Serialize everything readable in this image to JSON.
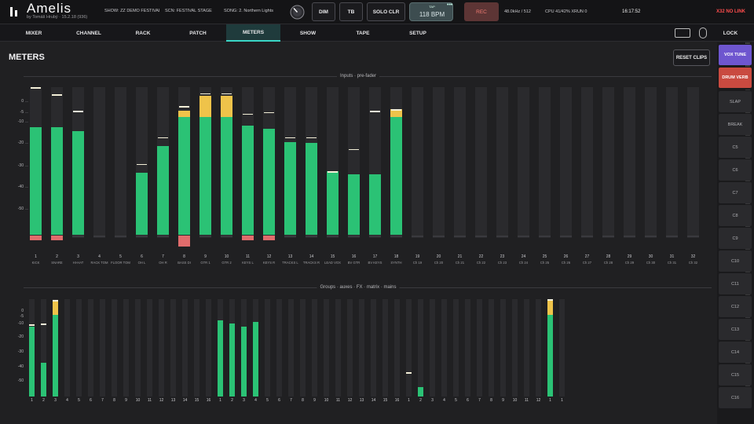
{
  "app": {
    "name": "Amelis",
    "subtitle": "by Tomáš Hrubý · 15.2.18 (936)"
  },
  "status": {
    "show": "SHOW: ZZ DEMO FESTIVAL STA...",
    "scene": "SCN: FESTIVAL STAGE",
    "song": "SONG: 2. Northern Lights",
    "samplerate": "48.0kHz / 512",
    "cpu": "CPU 41/42%  XRUN 0",
    "clock": "16:17:52",
    "console": "X32 NO LINK"
  },
  "top_buttons": {
    "dim": "DIM",
    "tb": "TB",
    "solo_clr": "SOLO CLR",
    "tap_label": "TAP",
    "tap_bpm": "118 BPM",
    "tap_more": "•••",
    "rec": "REC"
  },
  "nav": {
    "tabs": [
      "MIXER",
      "CHANNEL",
      "RACK",
      "PATCH",
      "METERS",
      "SHOW",
      "TAPE",
      "SETUP"
    ],
    "active": "METERS",
    "lock": "LOCK"
  },
  "page": {
    "title": "METERS",
    "reset": "RESET CLIPS",
    "inputs_label": "Inputs · pre-fader",
    "groups_label": "Groups · auxes · FX · matrix · mains"
  },
  "ticks": [
    "0",
    "-5",
    "-10",
    "-20",
    "-30",
    "-40",
    "-50"
  ],
  "inputs": [
    {
      "n": "1",
      "name": "KICK",
      "level": 0.73,
      "peak": 1.0,
      "clip": true
    },
    {
      "n": "2",
      "name": "SNARE",
      "level": 0.73,
      "peak": 0.95,
      "clip": true
    },
    {
      "n": "3",
      "name": "HI-HAT",
      "level": 0.7,
      "peak": 0.84,
      "clip": false
    },
    {
      "n": "4",
      "name": "RACK TOM",
      "level": 0,
      "peak": null,
      "clip": false
    },
    {
      "n": "5",
      "name": "FLOOR TOM",
      "level": 0,
      "peak": null,
      "clip": false
    },
    {
      "n": "6",
      "name": "OH L",
      "level": 0.42,
      "peak": 0.48,
      "clip": false
    },
    {
      "n": "7",
      "name": "OH R",
      "level": 0.6,
      "peak": 0.66,
      "clip": false
    },
    {
      "n": "8",
      "name": "BASS DI",
      "level": 0.84,
      "peak": 0.87,
      "clip": true
    },
    {
      "n": "9",
      "name": "GTR 1",
      "level": 0.94,
      "peak": 0.96,
      "clip": false
    },
    {
      "n": "10",
      "name": "GTR 2",
      "level": 0.94,
      "peak": 0.96,
      "clip": false
    },
    {
      "n": "11",
      "name": "KEYS L",
      "level": 0.74,
      "peak": 0.82,
      "clip": true
    },
    {
      "n": "12",
      "name": "KEYS R",
      "level": 0.72,
      "peak": 0.83,
      "clip": true
    },
    {
      "n": "13",
      "name": "TRACKS L",
      "level": 0.63,
      "peak": 0.66,
      "clip": false
    },
    {
      "n": "14",
      "name": "TRACKS R",
      "level": 0.62,
      "peak": 0.66,
      "clip": false
    },
    {
      "n": "15",
      "name": "LEAD VOX",
      "level": 0.43,
      "peak": 0.43,
      "clip": false
    },
    {
      "n": "16",
      "name": "BV GTR",
      "level": 0.41,
      "peak": 0.58,
      "clip": false
    },
    {
      "n": "17",
      "name": "BV KEYS",
      "level": 0.41,
      "peak": 0.84,
      "clip": false
    },
    {
      "n": "18",
      "name": "SYNTH",
      "level": 0.85,
      "peak": 0.85,
      "clip": false
    },
    {
      "n": "19",
      "name": "Ch 19",
      "level": 0,
      "peak": null,
      "clip": false
    },
    {
      "n": "20",
      "name": "Ch 20",
      "level": 0,
      "peak": null,
      "clip": false
    },
    {
      "n": "21",
      "name": "Ch 21",
      "level": 0,
      "peak": null,
      "clip": false
    },
    {
      "n": "22",
      "name": "Ch 22",
      "level": 0,
      "peak": null,
      "clip": false
    },
    {
      "n": "23",
      "name": "Ch 23",
      "level": 0,
      "peak": null,
      "clip": false
    },
    {
      "n": "24",
      "name": "Ch 24",
      "level": 0,
      "peak": null,
      "clip": false
    },
    {
      "n": "25",
      "name": "Ch 25",
      "level": 0,
      "peak": null,
      "clip": false
    },
    {
      "n": "26",
      "name": "Ch 26",
      "level": 0,
      "peak": null,
      "clip": false
    },
    {
      "n": "27",
      "name": "Ch 27",
      "level": 0,
      "peak": null,
      "clip": false
    },
    {
      "n": "28",
      "name": "Ch 28",
      "level": 0,
      "peak": null,
      "clip": false
    },
    {
      "n": "29",
      "name": "Ch 29",
      "level": 0,
      "peak": null,
      "clip": false
    },
    {
      "n": "30",
      "name": "Ch 30",
      "level": 0,
      "peak": null,
      "clip": false
    },
    {
      "n": "31",
      "name": "Ch 31",
      "level": 0,
      "peak": null,
      "clip": false
    },
    {
      "n": "32",
      "name": "Ch 32",
      "level": 0,
      "peak": null,
      "clip": false
    }
  ],
  "buses": [
    {
      "n": "1",
      "level": 0.72,
      "peak": 0.74
    },
    {
      "n": "2",
      "level": 0.35,
      "peak": 0.75
    },
    {
      "n": "3",
      "level": 0.98,
      "peak": 0.99
    },
    {
      "n": "4",
      "level": 0
    },
    {
      "n": "5",
      "level": 0
    },
    {
      "n": "6",
      "level": 0
    },
    {
      "n": "7",
      "level": 0
    },
    {
      "n": "8",
      "level": 0
    },
    {
      "n": "9",
      "level": 0
    },
    {
      "n": "10",
      "level": 0
    },
    {
      "n": "11",
      "level": 0
    },
    {
      "n": "12",
      "level": 0
    },
    {
      "n": "13",
      "level": 0
    },
    {
      "n": "14",
      "level": 0
    },
    {
      "n": "15",
      "level": 0
    },
    {
      "n": "16",
      "level": 0
    },
    {
      "n": "1",
      "level": 0.78
    },
    {
      "n": "2",
      "level": 0.75
    },
    {
      "n": "3",
      "level": 0.72
    },
    {
      "n": "4",
      "level": 0.77
    },
    {
      "n": "5",
      "level": 0
    },
    {
      "n": "6",
      "level": 0
    },
    {
      "n": "7",
      "level": 0
    },
    {
      "n": "8",
      "level": 0
    },
    {
      "n": "9",
      "level": 0
    },
    {
      "n": "10",
      "level": 0
    },
    {
      "n": "11",
      "level": 0
    },
    {
      "n": "12",
      "level": 0
    },
    {
      "n": "13",
      "level": 0
    },
    {
      "n": "14",
      "level": 0
    },
    {
      "n": "15",
      "level": 0
    },
    {
      "n": "16",
      "level": 0
    },
    {
      "n": "1",
      "level": 0,
      "peak": 0.25
    },
    {
      "n": "2",
      "level": 0.1
    },
    {
      "n": "3",
      "level": 0
    },
    {
      "n": "4",
      "level": 0
    },
    {
      "n": "5",
      "level": 0
    },
    {
      "n": "6",
      "level": 0
    },
    {
      "n": "7",
      "level": 0
    },
    {
      "n": "8",
      "level": 0
    },
    {
      "n": "9",
      "level": 0
    },
    {
      "n": "10",
      "level": 0
    },
    {
      "n": "11",
      "level": 0
    },
    {
      "n": "12",
      "level": 0
    },
    {
      "n": "1",
      "level": 1.0,
      "peak": 1.0
    },
    {
      "n": "1",
      "level": 0
    }
  ],
  "snapshots": [
    {
      "label": "VOX TUNE",
      "color": "#6e56cf",
      "text": "#ffffff"
    },
    {
      "label": "DRUM VERB",
      "color": "#c94a40",
      "text": "#ffffff"
    },
    {
      "label": "SLAP"
    },
    {
      "label": "BREAK"
    },
    {
      "label": "C5"
    },
    {
      "label": "C6"
    },
    {
      "label": "C7"
    },
    {
      "label": "C8"
    },
    {
      "label": "C9"
    },
    {
      "label": "C10"
    },
    {
      "label": "C11"
    },
    {
      "label": "C12"
    },
    {
      "label": "C13"
    },
    {
      "label": "C14"
    },
    {
      "label": "C15"
    },
    {
      "label": "C16"
    }
  ],
  "colors": {
    "meter_green": "#2bc275",
    "meter_yellow": "#efc34a",
    "clip_red": "#e06c6c",
    "accent": "#3ad6c6"
  }
}
